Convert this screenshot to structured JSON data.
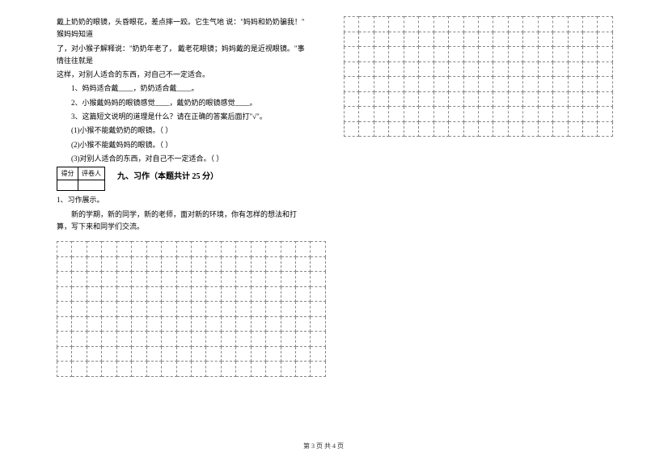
{
  "passage": {
    "line1": "戴上奶奶的眼镜，头昏眼花，差点摔一跤。它生气地 说：\"妈妈和奶奶骗我！\" 猴妈妈知道",
    "line2": "了，对小猴子解释说：\"奶奶年老了，   戴老花眼镜；妈妈戴的是近视眼镜。\"事情往往就是",
    "line3": "这样，对别人适合的东西，对自己不一定适合。",
    "q1": "1、妈妈适合戴____，奶奶适合戴____。",
    "q2": "2、小猴戴妈妈的眼镜感觉____，戴奶奶的眼镜感觉____。",
    "q3": "3、这篇短文说明的道理是什么？请在正确的答案后面打\"√\"。",
    "q3a": "(1)小猴不能戴奶奶的眼镜。（    ）",
    "q3b": "(2)小猴不能戴妈妈的眼镜。（    ）",
    "q3c": "(3)对别人适合的东西，对自己不一定适合。（    ）"
  },
  "score": {
    "label1": "得分",
    "label2": "评卷人"
  },
  "section9": {
    "title": "九、习作（本题共计 25 分）",
    "prompt_label": "1、习作展示。",
    "prompt_text": "新的学期，新的同学，新的老师，面对新的环境，你有怎样的想法和打 算，写下来和同学们交流。"
  },
  "footer": "第 3 页 共 4 页",
  "grid": {
    "left_rows": 9,
    "left_cols": 18,
    "right_rows": 8,
    "right_cols": 18
  },
  "colors": {
    "text": "#000000",
    "grid_border": "#888888",
    "background": "#ffffff"
  }
}
